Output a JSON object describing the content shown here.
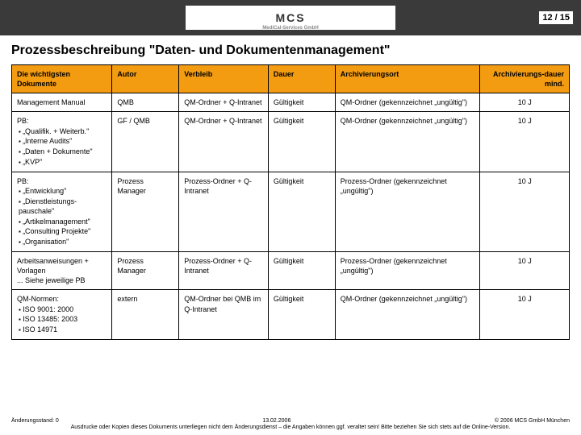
{
  "header": {
    "logo_text": "MCS",
    "logo_tagline": "MediCal-Services GmbH",
    "page_indicator": "12 / 15"
  },
  "title": "Prozessbeschreibung \"Daten- und Dokumentenmanagement\"",
  "table": {
    "columns": [
      "Die wichtigsten Dokumente",
      "Autor",
      "Verbleib",
      "Dauer",
      "Archivierungsort",
      "Archivierungs-dauer mind."
    ],
    "header_bg": "#f39c12",
    "border_color": "#000000",
    "rows": [
      {
        "doc_main": "Management Manual",
        "doc_items": [],
        "autor": "QMB",
        "verbleib": "QM-Ordner + Q-Intranet",
        "dauer": "Gültigkeit",
        "archivort": "QM-Ordner (gekennzeichnet „ungültig\")",
        "archivdauer": "10 J"
      },
      {
        "doc_main": "PB:",
        "doc_items": [
          "„Qualifik. + Weiterb.\"",
          "„Interne Audits\"",
          "„Daten + Dokumente\"",
          "„KVP\""
        ],
        "autor": "GF / QMB",
        "verbleib": "QM-Ordner + Q-Intranet",
        "dauer": "Gültigkeit",
        "archivort": "QM-Ordner (gekennzeichnet „ungültig\")",
        "archivdauer": "10 J"
      },
      {
        "doc_main": "PB:",
        "doc_items": [
          "„Entwicklung\"",
          "„Dienstleistungs-pauschale\"",
          "„Artikelmanagement\"",
          "„Consulting Projekte\"",
          "„Organisation\""
        ],
        "autor": "Prozess Manager",
        "verbleib": "Prozess-Ordner + Q-Intranet",
        "dauer": "Gültigkeit",
        "archivort": "Prozess-Ordner (gekennzeichnet „ungültig\")",
        "archivdauer": "10 J"
      },
      {
        "doc_main": "Arbeitsanweisungen + Vorlagen",
        "doc_tail": "... Siehe jeweilige PB",
        "doc_items": [],
        "autor": "Prozess Manager",
        "verbleib": "Prozess-Ordner + Q-Intranet",
        "dauer": "Gültigkeit",
        "archivort": "Prozess-Ordner (gekennzeichnet „ungültig\")",
        "archivdauer": "10 J"
      },
      {
        "doc_main": "QM-Normen:",
        "doc_items": [
          "ISO 9001: 2000",
          "ISO 13485: 2003",
          "ISO 14971"
        ],
        "autor": "extern",
        "verbleib": "QM-Ordner bei QMB im Q-Intranet",
        "dauer": "Gültigkeit",
        "archivort": "QM-Ordner (gekennzeichnet „ungültig\")",
        "archivdauer": "10 J"
      }
    ]
  },
  "footer": {
    "left": "Änderungsstand: 0",
    "center": "13.02.2006",
    "right": "© 2006 MCS GmbH München",
    "note": "Ausdrucke oder Kopien dieses Dokuments unterliegen nicht dem Änderungsdienst – die Angaben können ggf. veraltet sein! Bitte beziehen Sie sich stets auf die Online-Version."
  }
}
